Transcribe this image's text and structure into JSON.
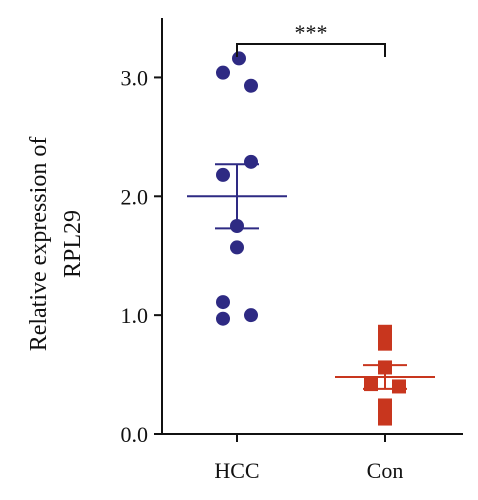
{
  "chart_data": {
    "type": "scatter",
    "ylabel": [
      "Relative expression of",
      "RPL29"
    ],
    "ylim": [
      0,
      3.5
    ],
    "yticks": [
      0.0,
      1.0,
      2.0,
      3.0
    ],
    "ytick_labels": [
      "0.0",
      "1.0",
      "2.0",
      "3.0"
    ],
    "categories": [
      "HCC",
      "Con"
    ],
    "series": [
      {
        "name": "HCC",
        "marker": "circle",
        "color": "#2e2a83",
        "values": [
          3.16,
          3.04,
          2.93,
          2.29,
          2.18,
          1.75,
          1.57,
          1.11,
          1.0,
          0.97
        ],
        "mean": 2.0,
        "sem_upper": 2.27,
        "sem_lower": 1.73
      },
      {
        "name": "Con",
        "marker": "square",
        "color": "#c8361e",
        "values": [
          0.86,
          0.76,
          0.56,
          0.42,
          0.4,
          0.24,
          0.13
        ],
        "mean": 0.48,
        "sem_upper": 0.58,
        "sem_lower": 0.38
      }
    ],
    "significance": {
      "between": [
        "HCC",
        "Con"
      ],
      "label": "***"
    }
  }
}
